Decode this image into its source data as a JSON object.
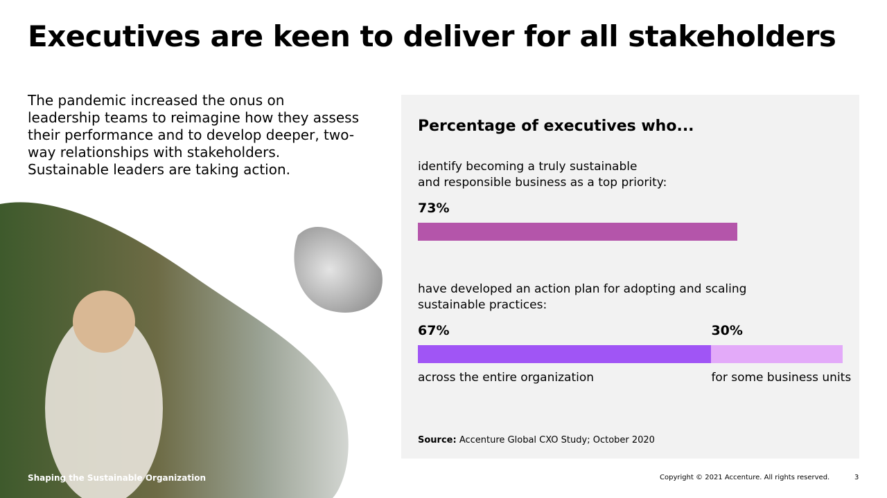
{
  "header": {
    "title": "Executives are keen to deliver for all stakeholders"
  },
  "intro": {
    "lines": [
      "The pandemic increased the onus on",
      "leadership teams to reimagine how they assess",
      "their performance and to develop deeper, two-",
      "way relationships with stakeholders.",
      "Sustainable leaders are taking action."
    ]
  },
  "chart_data": {
    "type": "bar",
    "title": "Percentage of executives who...",
    "questions": [
      {
        "lines": [
          "identify becoming a truly sustainable",
          "and responsible business as a top priority:"
        ],
        "values": [
          73
        ],
        "value_labels": [
          "73%"
        ],
        "colors": [
          "#b455aa"
        ]
      },
      {
        "lines": [
          "have developed an action plan for adopting and scaling",
          "sustainable practices:"
        ],
        "values": [
          67,
          30
        ],
        "value_labels": [
          "67%",
          "30%"
        ],
        "colors": [
          "#a055f5",
          "#e3aaf9"
        ],
        "segment_labels": [
          "across the entire organization",
          "for some business units"
        ]
      }
    ],
    "source_label": "Source:",
    "source": "Accenture Global CXO Study; October 2020"
  },
  "footer": {
    "left": "Shaping the Sustainable Organization",
    "copyright": "Copyright © 2021 Accenture. All rights reserved.",
    "page": 3
  }
}
